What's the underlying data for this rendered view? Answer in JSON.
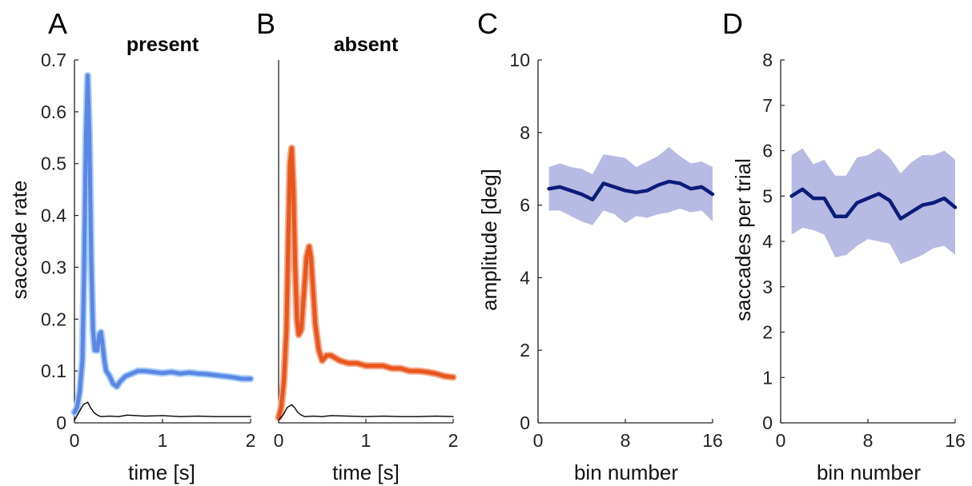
{
  "chart_data": [
    {
      "id": "A",
      "panel_label": "A",
      "type": "line",
      "title": "present",
      "xlabel": "time [s]",
      "ylabel": "saccade rate",
      "xlim": [
        0,
        2
      ],
      "ylim": [
        0,
        0.7
      ],
      "xticks": [
        0,
        1,
        2
      ],
      "xtick_labels": [
        "0",
        "1",
        "2"
      ],
      "yticks": [
        0,
        0.1,
        0.2,
        0.3,
        0.4,
        0.5,
        0.6,
        0.7
      ],
      "ytick_labels": [
        "0",
        "0.1",
        "0.2",
        "0.3",
        "0.4",
        "0.5",
        "0.6",
        "0.7"
      ],
      "box": false,
      "grid": false,
      "series": [
        {
          "color": "#5b86e5",
          "band_color": "#a9cff5",
          "x": [
            0,
            0.03,
            0.06,
            0.09,
            0.11,
            0.13,
            0.15,
            0.17,
            0.19,
            0.21,
            0.23,
            0.26,
            0.28,
            0.3,
            0.32,
            0.34,
            0.36,
            0.4,
            0.44,
            0.48,
            0.52,
            0.58,
            0.65,
            0.72,
            0.8,
            0.9,
            1.0,
            1.1,
            1.2,
            1.3,
            1.4,
            1.5,
            1.6,
            1.7,
            1.8,
            1.9,
            2.0
          ],
          "y": [
            0.02,
            0.03,
            0.06,
            0.12,
            0.3,
            0.55,
            0.67,
            0.55,
            0.32,
            0.18,
            0.14,
            0.14,
            0.17,
            0.175,
            0.15,
            0.12,
            0.1,
            0.09,
            0.075,
            0.07,
            0.08,
            0.09,
            0.095,
            0.1,
            0.1,
            0.098,
            0.096,
            0.098,
            0.095,
            0.097,
            0.095,
            0.094,
            0.092,
            0.09,
            0.088,
            0.085,
            0.085
          ]
        },
        {
          "color": "#000000",
          "x": [
            0,
            0.05,
            0.1,
            0.15,
            0.18,
            0.22,
            0.26,
            0.3,
            0.4,
            0.5,
            0.6,
            0.8,
            1.0,
            1.2,
            1.4,
            1.6,
            1.8,
            2.0
          ],
          "y": [
            0.005,
            0.02,
            0.035,
            0.04,
            0.03,
            0.02,
            0.015,
            0.012,
            0.013,
            0.012,
            0.015,
            0.013,
            0.014,
            0.012,
            0.013,
            0.012,
            0.012,
            0.012
          ]
        }
      ]
    },
    {
      "id": "B",
      "panel_label": "B",
      "type": "line",
      "title": "absent",
      "xlabel": "time [s]",
      "ylabel": "",
      "xlim": [
        0,
        2
      ],
      "ylim": [
        0,
        0.7
      ],
      "xticks": [
        0,
        1,
        2
      ],
      "xtick_labels": [
        "0",
        "1",
        "2"
      ],
      "yticks": [],
      "ytick_labels": [],
      "box": false,
      "grid": false,
      "series": [
        {
          "color": "#e8561c",
          "band_color": "#f4a88a",
          "x": [
            0,
            0.03,
            0.06,
            0.09,
            0.11,
            0.13,
            0.15,
            0.17,
            0.19,
            0.21,
            0.23,
            0.26,
            0.29,
            0.32,
            0.35,
            0.37,
            0.39,
            0.42,
            0.46,
            0.5,
            0.55,
            0.6,
            0.7,
            0.8,
            0.9,
            1.0,
            1.1,
            1.2,
            1.3,
            1.4,
            1.5,
            1.6,
            1.7,
            1.8,
            1.9,
            2.0
          ],
          "y": [
            0.01,
            0.03,
            0.08,
            0.18,
            0.35,
            0.5,
            0.53,
            0.45,
            0.3,
            0.2,
            0.17,
            0.18,
            0.25,
            0.32,
            0.34,
            0.32,
            0.27,
            0.19,
            0.14,
            0.12,
            0.13,
            0.13,
            0.12,
            0.115,
            0.115,
            0.11,
            0.11,
            0.11,
            0.105,
            0.105,
            0.1,
            0.1,
            0.098,
            0.095,
            0.09,
            0.088
          ]
        },
        {
          "color": "#000000",
          "x": [
            0,
            0.05,
            0.1,
            0.15,
            0.18,
            0.22,
            0.26,
            0.3,
            0.4,
            0.5,
            0.6,
            0.8,
            1.0,
            1.2,
            1.4,
            1.6,
            1.8,
            2.0
          ],
          "y": [
            0.005,
            0.015,
            0.03,
            0.035,
            0.03,
            0.02,
            0.015,
            0.012,
            0.013,
            0.012,
            0.014,
            0.013,
            0.012,
            0.013,
            0.012,
            0.012,
            0.013,
            0.012
          ]
        }
      ]
    },
    {
      "id": "C",
      "panel_label": "C",
      "type": "line",
      "title": "",
      "xlabel": "bin number",
      "ylabel": "amplitude [deg]",
      "xlim": [
        0,
        16
      ],
      "ylim": [
        0,
        10
      ],
      "xticks": [
        0,
        8,
        16
      ],
      "xtick_labels": [
        "0",
        "8",
        "16"
      ],
      "yticks": [
        0,
        2,
        4,
        6,
        8,
        10
      ],
      "ytick_labels": [
        "0",
        "2",
        "4",
        "6",
        "8",
        "10"
      ],
      "box": false,
      "grid": false,
      "series": [
        {
          "color": "#0b1c7a",
          "band_color": "#9fa3d8",
          "x": [
            1,
            2,
            3,
            4,
            5,
            6,
            7,
            8,
            9,
            10,
            11,
            12,
            13,
            14,
            15,
            16
          ],
          "y": [
            6.45,
            6.5,
            6.4,
            6.3,
            6.15,
            6.6,
            6.5,
            6.4,
            6.35,
            6.4,
            6.55,
            6.65,
            6.6,
            6.45,
            6.5,
            6.3
          ],
          "upper": [
            7.05,
            7.15,
            7.05,
            7.0,
            6.85,
            7.4,
            7.35,
            7.3,
            7.05,
            7.2,
            7.35,
            7.6,
            7.35,
            7.15,
            7.2,
            7.05
          ],
          "lower": [
            5.85,
            5.85,
            5.7,
            5.55,
            5.45,
            5.85,
            5.75,
            5.5,
            5.7,
            5.65,
            5.75,
            5.8,
            5.9,
            5.8,
            5.85,
            5.55
          ]
        }
      ]
    },
    {
      "id": "D",
      "panel_label": "D",
      "type": "line",
      "title": "",
      "xlabel": "bin number",
      "ylabel": "saccades per trial",
      "xlim": [
        0,
        16
      ],
      "ylim": [
        0,
        8
      ],
      "xticks": [
        0,
        8,
        16
      ],
      "xtick_labels": [
        "0",
        "8",
        "16"
      ],
      "yticks": [
        0,
        1,
        2,
        3,
        4,
        5,
        6,
        7,
        8
      ],
      "ytick_labels": [
        "0",
        "1",
        "2",
        "3",
        "4",
        "5",
        "6",
        "7",
        "8"
      ],
      "box": false,
      "grid": false,
      "series": [
        {
          "color": "#0b1c7a",
          "band_color": "#9fa3d8",
          "x": [
            1,
            2,
            3,
            4,
            5,
            6,
            7,
            8,
            9,
            10,
            11,
            12,
            13,
            14,
            15,
            16
          ],
          "y": [
            5.0,
            5.15,
            4.95,
            4.95,
            4.55,
            4.55,
            4.85,
            4.95,
            5.05,
            4.9,
            4.5,
            4.65,
            4.8,
            4.85,
            4.95,
            4.75
          ],
          "upper": [
            5.9,
            6.05,
            5.7,
            5.8,
            5.45,
            5.45,
            5.85,
            5.9,
            6.05,
            5.85,
            5.5,
            5.75,
            5.9,
            5.9,
            6.0,
            5.8
          ],
          "lower": [
            4.15,
            4.3,
            4.25,
            4.15,
            3.65,
            3.7,
            3.9,
            4.05,
            4.0,
            3.95,
            3.5,
            3.6,
            3.7,
            3.85,
            3.9,
            3.7
          ]
        }
      ]
    }
  ]
}
